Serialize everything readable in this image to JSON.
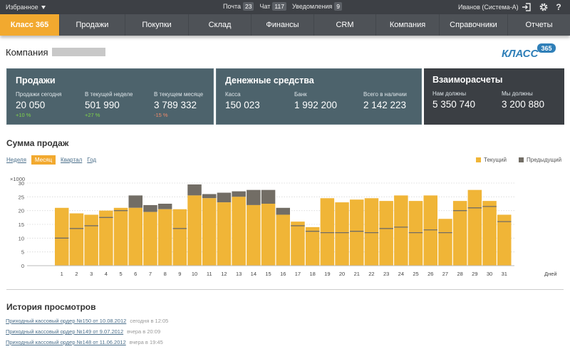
{
  "topbar": {
    "favorites": "Избранное",
    "counters": [
      {
        "label": "Почта",
        "count": "23"
      },
      {
        "label": "Чат",
        "count": "117"
      },
      {
        "label": "Уведомления",
        "count": "9"
      }
    ],
    "user": "Иванов (Система-А)"
  },
  "nav": {
    "items": [
      {
        "label": "Класс 365"
      },
      {
        "label": "Продажи"
      },
      {
        "label": "Покупки"
      },
      {
        "label": "Склад"
      },
      {
        "label": "Финансы"
      },
      {
        "label": "CRM"
      },
      {
        "label": "Компания"
      },
      {
        "label": "Справочники"
      },
      {
        "label": "Отчеты"
      }
    ]
  },
  "company": {
    "label": "Компания"
  },
  "logo": {
    "text": "КЛАСС",
    "number": "365"
  },
  "panels": {
    "sales": {
      "title": "Продажи",
      "items": [
        {
          "label": "Продажи сегодня",
          "value": "20 050",
          "change": "+10 %"
        },
        {
          "label": "В текущей неделе",
          "value": "501 990",
          "change": "+27 %"
        },
        {
          "label": "В текущем месяце",
          "value": "3 789 332",
          "change": "-15 %"
        }
      ]
    },
    "cash": {
      "title": "Денежные средства",
      "items": [
        {
          "label": "Касса",
          "value": "150 023"
        },
        {
          "label": "Банк",
          "value": "1 992 200"
        },
        {
          "label": "Всего в наличии",
          "value": "2 142 223"
        }
      ]
    },
    "settlements": {
      "title": "Взаиморасчеты",
      "items": [
        {
          "label": "Нам должны",
          "value": "5 350 740"
        },
        {
          "label": "Мы должны",
          "value": "3 200 880"
        }
      ]
    }
  },
  "sales_chart": {
    "title": "Сумма продаж",
    "tabs": [
      "Неделя",
      "Месяц",
      "Квартал",
      "Год"
    ],
    "legend": {
      "current": "Текущий",
      "previous": "Предыдущий"
    }
  },
  "colors": {
    "current": "#f0b537",
    "previous": "#726d65",
    "accent": "#f2a92f",
    "positive": "#7fd34a",
    "negative": "#f08a6a"
  },
  "chart_data": {
    "type": "bar",
    "ylabel": "×1000",
    "xlabel": "Дней",
    "ylim": [
      0,
      30
    ],
    "yticks": [
      0,
      5,
      10,
      15,
      20,
      25,
      30
    ],
    "categories": [
      "1",
      "2",
      "3",
      "4",
      "5",
      "6",
      "7",
      "8",
      "9",
      "10",
      "11",
      "12",
      "13",
      "14",
      "15",
      "16",
      "17",
      "18",
      "19",
      "20",
      "21",
      "22",
      "23",
      "24",
      "25",
      "26",
      "27",
      "28",
      "29",
      "30",
      "31"
    ],
    "series": [
      {
        "name": "Текущий",
        "values": [
          21,
          19,
          18.5,
          20,
          21,
          21,
          19.5,
          20.5,
          20.5,
          25.5,
          24.5,
          23,
          25,
          22,
          22.5,
          18.5,
          16,
          14,
          24.5,
          23,
          24,
          24.5,
          23.5,
          25.5,
          23.5,
          25.5,
          17,
          23.5,
          27.5,
          23.5,
          18.5
        ]
      },
      {
        "name": "Предыдущий",
        "values": [
          10,
          13.5,
          14.5,
          17.5,
          20,
          25.5,
          22,
          22.5,
          13.5,
          29.5,
          26,
          26.5,
          27,
          27.5,
          27.5,
          21,
          14.5,
          12.5,
          12,
          12,
          12.5,
          12,
          13.5,
          14,
          12,
          13,
          12,
          20,
          21,
          21.5,
          16
        ]
      }
    ]
  },
  "history": {
    "title": "История просмотров",
    "items": [
      {
        "text": "Приходный кассовый ордер №150 от 10.08.2012",
        "when": "сегодня в 12:05"
      },
      {
        "text": "Приходный кассовый ордер №149 от 9.07.2012",
        "when": "вчера в 20:09"
      },
      {
        "text": "Приходный кассовый ордер №148 от 11.06.2012",
        "when": "вчера в 19:45"
      }
    ]
  }
}
